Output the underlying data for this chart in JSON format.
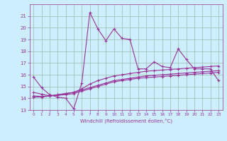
{
  "xlabel": "Windchill (Refroidissement éolien,°C)",
  "x_values": [
    0,
    1,
    2,
    3,
    4,
    5,
    6,
    7,
    8,
    9,
    10,
    11,
    12,
    13,
    14,
    15,
    16,
    17,
    18,
    19,
    20,
    21,
    22,
    23
  ],
  "line1_y": [
    15.8,
    14.9,
    14.3,
    14.1,
    14.0,
    13.1,
    15.3,
    21.3,
    19.9,
    18.9,
    19.9,
    19.1,
    19.0,
    16.5,
    16.5,
    17.1,
    16.7,
    16.6,
    18.2,
    17.3,
    16.5,
    16.5,
    16.5,
    15.5
  ],
  "line2_y": [
    14.5,
    14.35,
    14.2,
    14.3,
    14.4,
    14.5,
    14.8,
    15.2,
    15.5,
    15.7,
    15.9,
    16.0,
    16.1,
    16.2,
    16.3,
    16.35,
    16.4,
    16.45,
    16.5,
    16.55,
    16.6,
    16.65,
    16.7,
    16.75
  ],
  "line3_y": [
    14.1,
    14.1,
    14.2,
    14.3,
    14.4,
    14.5,
    14.7,
    14.9,
    15.1,
    15.3,
    15.5,
    15.6,
    15.7,
    15.8,
    15.9,
    15.95,
    16.0,
    16.05,
    16.1,
    16.15,
    16.2,
    16.25,
    16.3,
    16.35
  ],
  "line4_y": [
    14.2,
    14.15,
    14.2,
    14.25,
    14.3,
    14.4,
    14.6,
    14.8,
    15.0,
    15.2,
    15.4,
    15.5,
    15.6,
    15.7,
    15.75,
    15.8,
    15.85,
    15.9,
    15.95,
    16.0,
    16.05,
    16.1,
    16.15,
    16.2
  ],
  "line_color": "#993399",
  "bg_color": "#cceeff",
  "grid_color": "#99bbaa",
  "ylim": [
    13,
    22
  ],
  "yticks": [
    13,
    14,
    15,
    16,
    17,
    18,
    19,
    20,
    21
  ],
  "xlim": [
    -0.5,
    23.5
  ],
  "xticks": [
    0,
    1,
    2,
    3,
    4,
    5,
    6,
    7,
    8,
    9,
    10,
    11,
    12,
    13,
    14,
    15,
    16,
    17,
    18,
    19,
    20,
    21,
    22,
    23
  ],
  "marker": "+"
}
